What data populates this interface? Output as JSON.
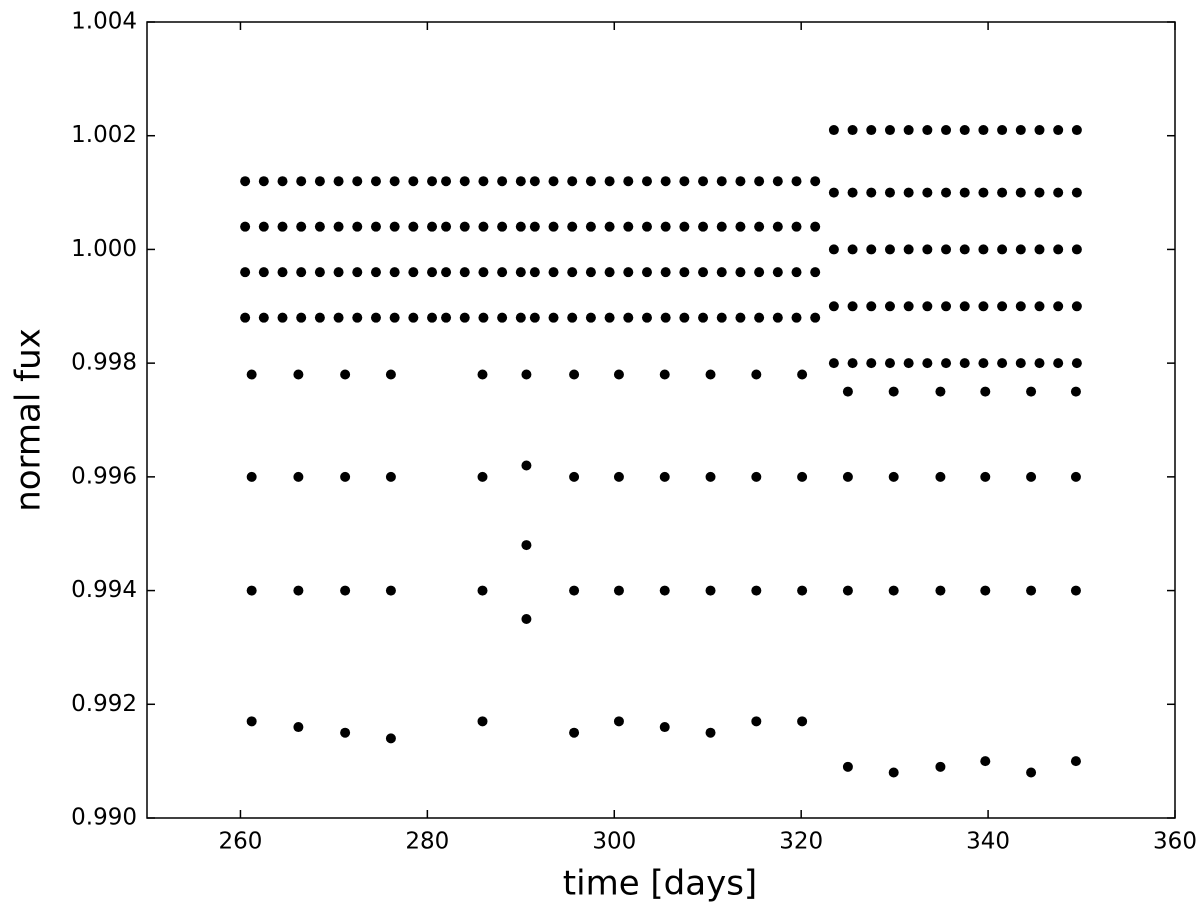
{
  "chart_data": {
    "type": "scatter",
    "xlabel": "time [days]",
    "ylabel": "normal fux",
    "color": "#000000",
    "xlim": [
      250,
      360
    ],
    "xticks": [
      260,
      280,
      300,
      320,
      340,
      360
    ],
    "ylim": [
      0.99,
      1.004
    ],
    "yticks": [
      {
        "value": 0.99,
        "label": "0.990"
      },
      0.992,
      0.994,
      0.996,
      0.998,
      {
        "value": 1.0,
        "label": "1.000"
      },
      1.002,
      1.004
    ],
    "x": [
      260.5,
      260.5,
      260.5,
      260.5,
      262.5,
      262.5,
      262.5,
      262.5,
      264.5,
      264.5,
      264.5,
      264.5,
      266.5,
      266.5,
      266.5,
      266.5,
      268.5,
      268.5,
      268.5,
      268.5,
      270.5,
      270.5,
      270.5,
      270.5,
      272.5,
      272.5,
      272.5,
      272.5,
      274.5,
      274.5,
      274.5,
      274.5,
      276.5,
      276.5,
      276.5,
      276.5,
      278.5,
      278.5,
      278.5,
      278.5,
      280.5,
      280.5,
      280.5,
      280.5,
      282,
      282,
      282,
      282,
      284,
      284,
      284,
      284,
      286,
      286,
      286,
      286,
      288,
      288,
      288,
      288,
      290,
      290,
      290,
      290,
      291.5,
      291.5,
      291.5,
      291.5,
      293.5,
      293.5,
      293.5,
      293.5,
      295.5,
      295.5,
      295.5,
      295.5,
      297.5,
      297.5,
      297.5,
      297.5,
      299.5,
      299.5,
      299.5,
      299.5,
      301.5,
      301.5,
      301.5,
      301.5,
      303.5,
      303.5,
      303.5,
      303.5,
      305.5,
      305.5,
      305.5,
      305.5,
      307.5,
      307.5,
      307.5,
      307.5,
      309.5,
      309.5,
      309.5,
      309.5,
      311.5,
      311.5,
      311.5,
      311.5,
      313.5,
      313.5,
      313.5,
      313.5,
      315.5,
      315.5,
      315.5,
      315.5,
      317.5,
      317.5,
      317.5,
      317.5,
      319.5,
      319.5,
      319.5,
      319.5,
      321.5,
      321.5,
      321.5,
      321.5,
      323.5,
      323.5,
      323.5,
      323.5,
      323.5,
      325.5,
      325.5,
      325.5,
      325.5,
      325.5,
      327.5,
      327.5,
      327.5,
      327.5,
      327.5,
      329.5,
      329.5,
      329.5,
      329.5,
      329.5,
      331.5,
      331.5,
      331.5,
      331.5,
      331.5,
      333.5,
      333.5,
      333.5,
      333.5,
      333.5,
      335.5,
      335.5,
      335.5,
      335.5,
      335.5,
      337.5,
      337.5,
      337.5,
      337.5,
      337.5,
      339.5,
      339.5,
      339.5,
      339.5,
      339.5,
      341.5,
      341.5,
      341.5,
      341.5,
      341.5,
      343.5,
      343.5,
      343.5,
      343.5,
      343.5,
      345.5,
      345.5,
      345.5,
      345.5,
      345.5,
      347.5,
      347.5,
      347.5,
      347.5,
      347.5,
      349.5,
      349.5,
      349.5,
      349.5,
      349.5,
      261.2,
      261.2,
      261.2,
      261.2,
      266.2,
      266.2,
      266.2,
      266.2,
      271.2,
      271.2,
      271.2,
      271.2,
      276.1,
      276.1,
      276.1,
      276.1,
      285.9,
      285.9,
      285.9,
      285.9,
      290.6,
      290.6,
      290.6,
      290.6,
      295.7,
      295.7,
      295.7,
      295.7,
      300.5,
      300.5,
      300.5,
      300.5,
      305.4,
      305.4,
      305.4,
      305.4,
      310.3,
      310.3,
      310.3,
      310.3,
      315.2,
      315.2,
      315.2,
      315.2,
      320.1,
      320.1,
      320.1,
      320.1,
      325,
      325,
      325,
      325,
      329.9,
      329.9,
      329.9,
      329.9,
      334.9,
      334.9,
      334.9,
      334.9,
      339.7,
      339.7,
      339.7,
      339.7,
      344.6,
      344.6,
      344.6,
      344.6,
      349.4,
      349.4,
      349.4,
      349.4
    ],
    "values": [
      1.0012,
      1.0004,
      0.9996,
      0.9988,
      1.0012,
      1.0004,
      0.9996,
      0.9988,
      1.0012,
      1.0004,
      0.9996,
      0.9988,
      1.0012,
      1.0004,
      0.9996,
      0.9988,
      1.0012,
      1.0004,
      0.9996,
      0.9988,
      1.0012,
      1.0004,
      0.9996,
      0.9988,
      1.0012,
      1.0004,
      0.9996,
      0.9988,
      1.0012,
      1.0004,
      0.9996,
      0.9988,
      1.0012,
      1.0004,
      0.9996,
      0.9988,
      1.0012,
      1.0004,
      0.9996,
      0.9988,
      1.0012,
      1.0004,
      0.9996,
      0.9988,
      1.0012,
      1.0004,
      0.9996,
      0.9988,
      1.0012,
      1.0004,
      0.9996,
      0.9988,
      1.0012,
      1.0004,
      0.9996,
      0.9988,
      1.0012,
      1.0004,
      0.9996,
      0.9988,
      1.0012,
      1.0004,
      0.9996,
      0.9988,
      1.0012,
      1.0004,
      0.9996,
      0.9988,
      1.0012,
      1.0004,
      0.9996,
      0.9988,
      1.0012,
      1.0004,
      0.9996,
      0.9988,
      1.0012,
      1.0004,
      0.9996,
      0.9988,
      1.0012,
      1.0004,
      0.9996,
      0.9988,
      1.0012,
      1.0004,
      0.9996,
      0.9988,
      1.0012,
      1.0004,
      0.9996,
      0.9988,
      1.0012,
      1.0004,
      0.9996,
      0.9988,
      1.0012,
      1.0004,
      0.9996,
      0.9988,
      1.0012,
      1.0004,
      0.9996,
      0.9988,
      1.0012,
      1.0004,
      0.9996,
      0.9988,
      1.0012,
      1.0004,
      0.9996,
      0.9988,
      1.0012,
      1.0004,
      0.9996,
      0.9988,
      1.0012,
      1.0004,
      0.9996,
      0.9988,
      1.0012,
      1.0004,
      0.9996,
      0.9988,
      1.0012,
      1.0004,
      0.9996,
      0.9988,
      1.0021,
      1.001,
      1.0,
      0.999,
      0.998,
      1.0021,
      1.001,
      1.0,
      0.999,
      0.998,
      1.0021,
      1.001,
      1.0,
      0.999,
      0.998,
      1.0021,
      1.001,
      1.0,
      0.999,
      0.998,
      1.0021,
      1.001,
      1.0,
      0.999,
      0.998,
      1.0021,
      1.001,
      1.0,
      0.999,
      0.998,
      1.0021,
      1.001,
      1.0,
      0.999,
      0.998,
      1.0021,
      1.001,
      1.0,
      0.999,
      0.998,
      1.0021,
      1.001,
      1.0,
      0.999,
      0.998,
      1.0021,
      1.001,
      1.0,
      0.999,
      0.998,
      1.0021,
      1.001,
      1.0,
      0.999,
      0.998,
      1.0021,
      1.001,
      1.0,
      0.999,
      0.998,
      1.0021,
      1.001,
      1.0,
      0.999,
      0.998,
      1.0021,
      1.001,
      1.0,
      0.999,
      0.998,
      0.9978,
      0.996,
      0.994,
      0.9917,
      0.9978,
      0.996,
      0.994,
      0.9916,
      0.9978,
      0.996,
      0.994,
      0.9915,
      0.9978,
      0.996,
      0.994,
      0.9914,
      0.9978,
      0.996,
      0.994,
      0.9917,
      0.9978,
      0.9962,
      0.9948,
      0.9935,
      0.9978,
      0.996,
      0.994,
      0.9915,
      0.9978,
      0.996,
      0.994,
      0.9917,
      0.9978,
      0.996,
      0.994,
      0.9916,
      0.9978,
      0.996,
      0.994,
      0.9915,
      0.9978,
      0.996,
      0.994,
      0.9917,
      0.9978,
      0.996,
      0.994,
      0.9917,
      0.9975,
      0.996,
      0.994,
      0.9909,
      0.9975,
      0.996,
      0.994,
      0.9908,
      0.9975,
      0.996,
      0.994,
      0.9909,
      0.9975,
      0.996,
      0.994,
      0.991,
      0.9975,
      0.996,
      0.994,
      0.9908,
      0.9975,
      0.996,
      0.994,
      0.991
    ]
  }
}
